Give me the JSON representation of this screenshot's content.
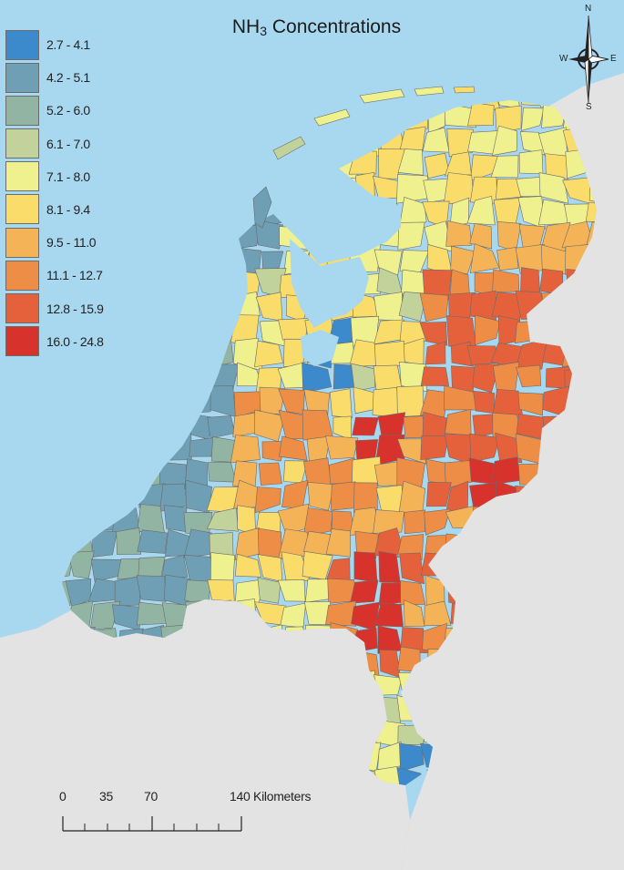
{
  "map": {
    "title_main": "NH",
    "title_sub": "3",
    "title_rest": " Concentrations",
    "water_color": "#a8d8ef",
    "land_color": "#e3e3e3"
  },
  "legend": [
    {
      "label": "2.7 - 4.1",
      "color": "#3c8acb"
    },
    {
      "label": "4.2 - 5.1",
      "color": "#6e9fb4"
    },
    {
      "label": "5.2 - 6.0",
      "color": "#92b5a3"
    },
    {
      "label": "6.1 - 7.0",
      "color": "#c1d39a"
    },
    {
      "label": "7.1 - 8.0",
      "color": "#eff08e"
    },
    {
      "label": "8.1 - 9.4",
      "color": "#f9dc6a"
    },
    {
      "label": "9.5 - 11.0",
      "color": "#f4b357"
    },
    {
      "label": "11.1 - 12.7",
      "color": "#ee8d45"
    },
    {
      "label": "12.8 - 15.9",
      "color": "#e4613b"
    },
    {
      "label": "16.0 - 24.8",
      "color": "#d8322c"
    }
  ],
  "scale_bar": {
    "labels": [
      "0",
      "35",
      "70",
      "140 Kilometers"
    ]
  },
  "compass": {
    "n": "N",
    "s": "S",
    "e": "E",
    "w": "W"
  }
}
